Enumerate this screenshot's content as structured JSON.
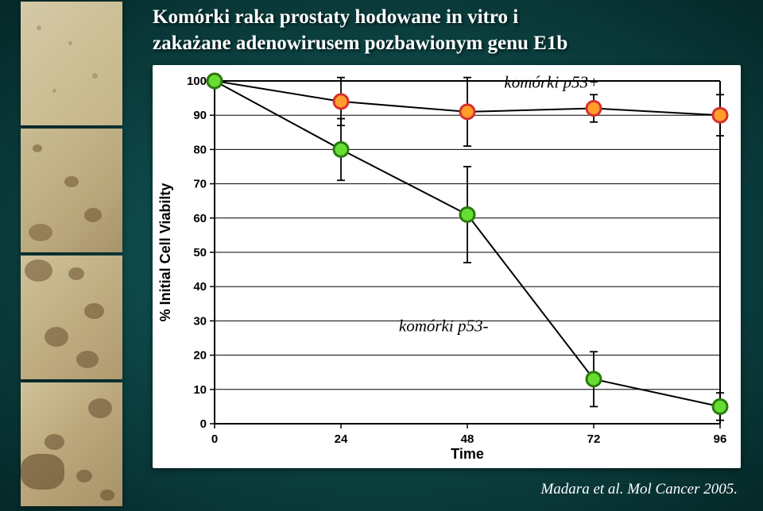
{
  "title_line1": "Komórki raka prostaty hodowane in vitro i",
  "title_line2": "zakażane adenowirusem pozbawionym genu E1b",
  "citation": "Madara et al. Mol Cancer 2005.",
  "chart": {
    "type": "line-scatter-errorbar",
    "background_color": "#ffffff",
    "plot_border_color": "#000000",
    "gridline_color": "#000000",
    "gridline_width": 1,
    "axis_font": "Arial, sans-serif",
    "axis_fontsize": 15,
    "axis_fontweight": "bold",
    "xlabel": "Time",
    "ylabel": "% Initial Cell Viabilty",
    "label_fontsize": 18,
    "label_fontweight": "bold",
    "xlim": [
      0,
      96
    ],
    "ylim": [
      0,
      100
    ],
    "xticks": [
      0,
      24,
      48,
      72,
      96
    ],
    "yticks": [
      0,
      10,
      20,
      30,
      40,
      50,
      60,
      70,
      80,
      90,
      100
    ],
    "series": [
      {
        "name": "komórki p53+",
        "label_text": "komórki p53+",
        "label_pos": [
          55,
          98
        ],
        "label_fontsize": 21,
        "label_fontstyle": "italic",
        "marker": "circle",
        "marker_size": 18,
        "marker_fill": "#ff9e2c",
        "marker_stroke": "#d63030",
        "marker_stroke_width": 3,
        "line_color": "#000000",
        "line_width": 2,
        "data": [
          {
            "x": 0,
            "y": 100,
            "err": 0
          },
          {
            "x": 24,
            "y": 94,
            "err": 7
          },
          {
            "x": 48,
            "y": 91,
            "err": 10
          },
          {
            "x": 72,
            "y": 92,
            "err": 4
          },
          {
            "x": 96,
            "y": 90,
            "err": 6
          }
        ]
      },
      {
        "name": "komórki p53-",
        "label_text": "komórki p53-",
        "label_pos": [
          35,
          27
        ],
        "label_fontsize": 21,
        "label_fontstyle": "italic",
        "marker": "circle",
        "marker_size": 18,
        "marker_fill": "#66dd33",
        "marker_stroke": "#2a7a10",
        "marker_stroke_width": 3,
        "line_color": "#000000",
        "line_width": 2,
        "data": [
          {
            "x": 0,
            "y": 100,
            "err": 0
          },
          {
            "x": 24,
            "y": 80,
            "err": 9
          },
          {
            "x": 48,
            "y": 61,
            "err": 14
          },
          {
            "x": 72,
            "y": 13,
            "err": 8
          },
          {
            "x": 96,
            "y": 5,
            "err": 4
          }
        ]
      }
    ]
  }
}
